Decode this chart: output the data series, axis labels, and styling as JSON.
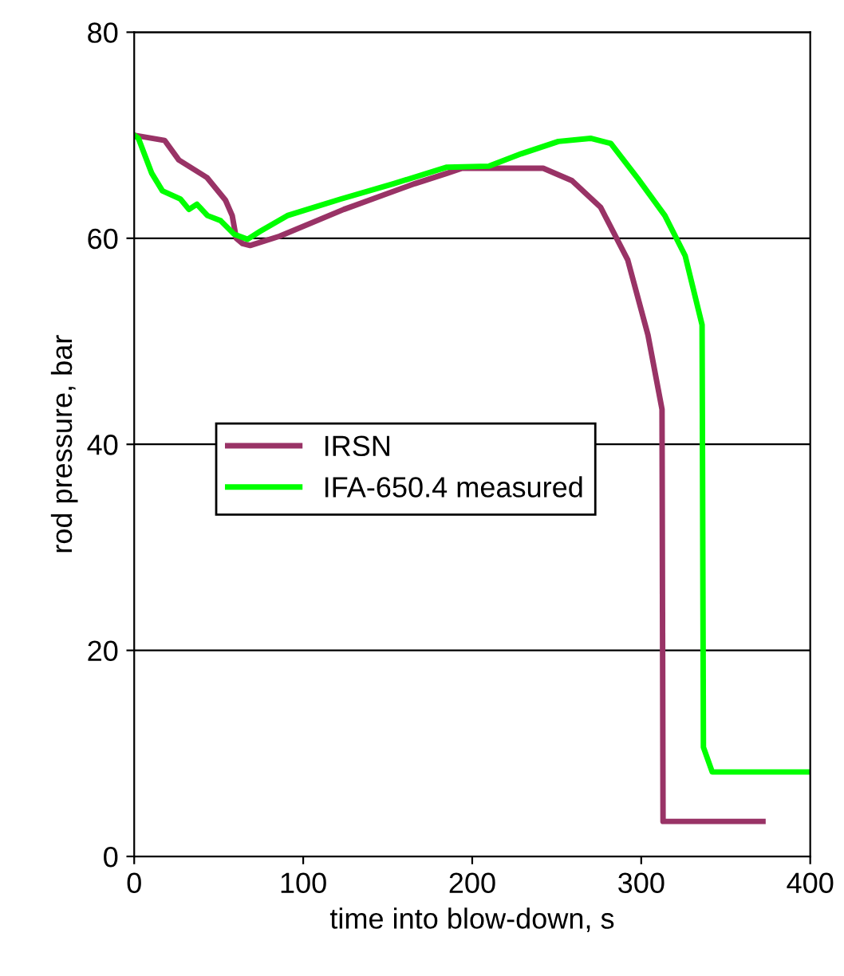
{
  "chart_data": {
    "type": "line",
    "xlabel": "time into blow-down, s",
    "ylabel": "rod pressure, bar",
    "xlim": [
      0,
      400
    ],
    "ylim": [
      0,
      80
    ],
    "xticks": [
      0,
      100,
      200,
      300,
      400
    ],
    "yticks": [
      0,
      20,
      40,
      60,
      80
    ],
    "grid": "y",
    "legend": "left",
    "marker": "none",
    "line_style": "solid",
    "series": [
      {
        "name": "IRSN",
        "color": "#993366",
        "x": [
          0,
          18,
          26.4,
          43,
          54,
          58,
          60.4,
          64,
          68.6,
          86,
          124,
          166,
          185,
          194,
          242,
          259,
          276,
          292,
          304,
          312.3,
          312.9,
          372
        ],
        "values": [
          70,
          69.5,
          67.6,
          65.9,
          63.7,
          62.2,
          60.0,
          59.5,
          59.3,
          60.2,
          62.8,
          65.3,
          66.3,
          66.8,
          66.8,
          65.6,
          63.0,
          57.9,
          50.6,
          43.4,
          3.4,
          3.4
        ]
      },
      {
        "name": "IFA-650.4 measured",
        "color": "#00ff00",
        "x": [
          0,
          2.5,
          10.4,
          16.7,
          27.4,
          32.4,
          37.1,
          43.4,
          51.2,
          59.1,
          67,
          74.8,
          90.6,
          122,
          153.5,
          185,
          210,
          229,
          251,
          270,
          282,
          298,
          314,
          326,
          336,
          336.8,
          342,
          400
        ],
        "values": [
          70,
          69.7,
          66.3,
          64.6,
          63.8,
          62.8,
          63.3,
          62.2,
          61.7,
          60.4,
          59.9,
          60.7,
          62.2,
          63.8,
          65.3,
          66.9,
          67.0,
          68.2,
          69.4,
          69.7,
          69.2,
          65.8,
          62.2,
          58.3,
          51.6,
          10.6,
          8.2,
          8.2
        ]
      }
    ]
  }
}
